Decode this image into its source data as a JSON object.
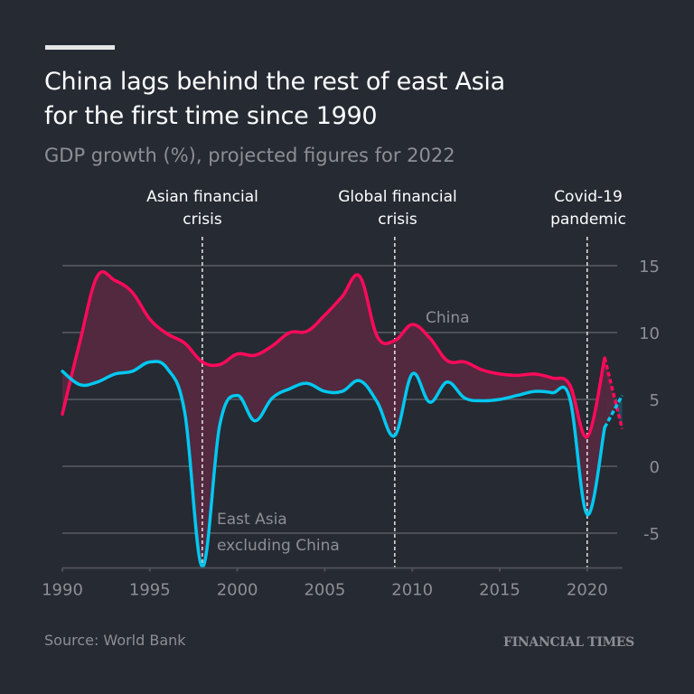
{
  "header": {
    "title_line1": "China lags behind the rest of east Asia",
    "title_line2": "for the first time since 1990",
    "subtitle": "GDP growth (%), projected figures for 2022"
  },
  "footer": {
    "source": "Source: World Bank",
    "logo": "FINANCIAL TIMES"
  },
  "colors": {
    "background": "#262a33",
    "china": "#ff0a5a",
    "east_asia": "#00c8f0",
    "fill_china_above": "#52293f",
    "fill_east_asia_above": "#1f4a5c",
    "grid": "#4d5057",
    "text_muted": "#8c8f95"
  },
  "chart_data": {
    "type": "line",
    "title": "China lags behind the rest of east Asia for the first time since 1990",
    "subtitle": "GDP growth (%), projected figures for 2022",
    "xlabel": "",
    "ylabel": "",
    "xlim": [
      1990,
      2022
    ],
    "ylim": [
      -7.6,
      16
    ],
    "grid": true,
    "x_ticks": [
      1990,
      1995,
      2000,
      2005,
      2010,
      2015,
      2020
    ],
    "x_tick_labels": [
      "1990",
      "1995",
      "2000",
      "2005",
      "2010",
      "2015",
      "2020"
    ],
    "y_ticks": [
      15,
      10,
      5,
      0,
      -5
    ],
    "y_tick_labels": [
      "15",
      "10",
      "5",
      "0",
      "-5"
    ],
    "y_axis_position": "right",
    "x": [
      1990,
      1991,
      1992,
      1993,
      1994,
      1995,
      1996,
      1997,
      1998,
      1999,
      2000,
      2001,
      2002,
      2003,
      2004,
      2005,
      2006,
      2007,
      2008,
      2009,
      2010,
      2011,
      2012,
      2013,
      2014,
      2015,
      2016,
      2017,
      2018,
      2019,
      2020,
      2021,
      2022
    ],
    "series": [
      {
        "name": "China",
        "label": "China",
        "values": [
          3.9,
          9.3,
          14.2,
          13.9,
          13.0,
          11.0,
          9.9,
          9.2,
          7.8,
          7.6,
          8.4,
          8.3,
          9.0,
          10.0,
          10.1,
          11.3,
          12.7,
          14.2,
          9.7,
          9.4,
          10.6,
          9.6,
          7.9,
          7.8,
          7.2,
          6.9,
          6.8,
          6.9,
          6.6,
          6.1,
          2.2,
          8.1,
          2.8
        ],
        "projected_from": 2021
      },
      {
        "name": "East Asia excluding China",
        "label_line1": "East Asia",
        "label_line2": "excluding China",
        "values": [
          7.1,
          6.1,
          6.3,
          6.9,
          7.1,
          7.8,
          7.3,
          4.0,
          -7.5,
          3.1,
          5.3,
          3.4,
          5.1,
          5.8,
          6.2,
          5.6,
          5.6,
          6.4,
          4.8,
          2.3,
          6.9,
          4.8,
          6.3,
          5.1,
          4.9,
          5.0,
          5.3,
          5.6,
          5.5,
          5.1,
          -3.6,
          2.9,
          5.3
        ],
        "projected_from": 2021
      }
    ],
    "annotations": [
      {
        "x": 1998,
        "line1": "Asian financial",
        "line2": "crisis"
      },
      {
        "x": 2009,
        "line1": "Global financial",
        "line2": "crisis"
      },
      {
        "x": 2020,
        "line1": "Covid-19",
        "line2": "pandemic"
      }
    ]
  }
}
